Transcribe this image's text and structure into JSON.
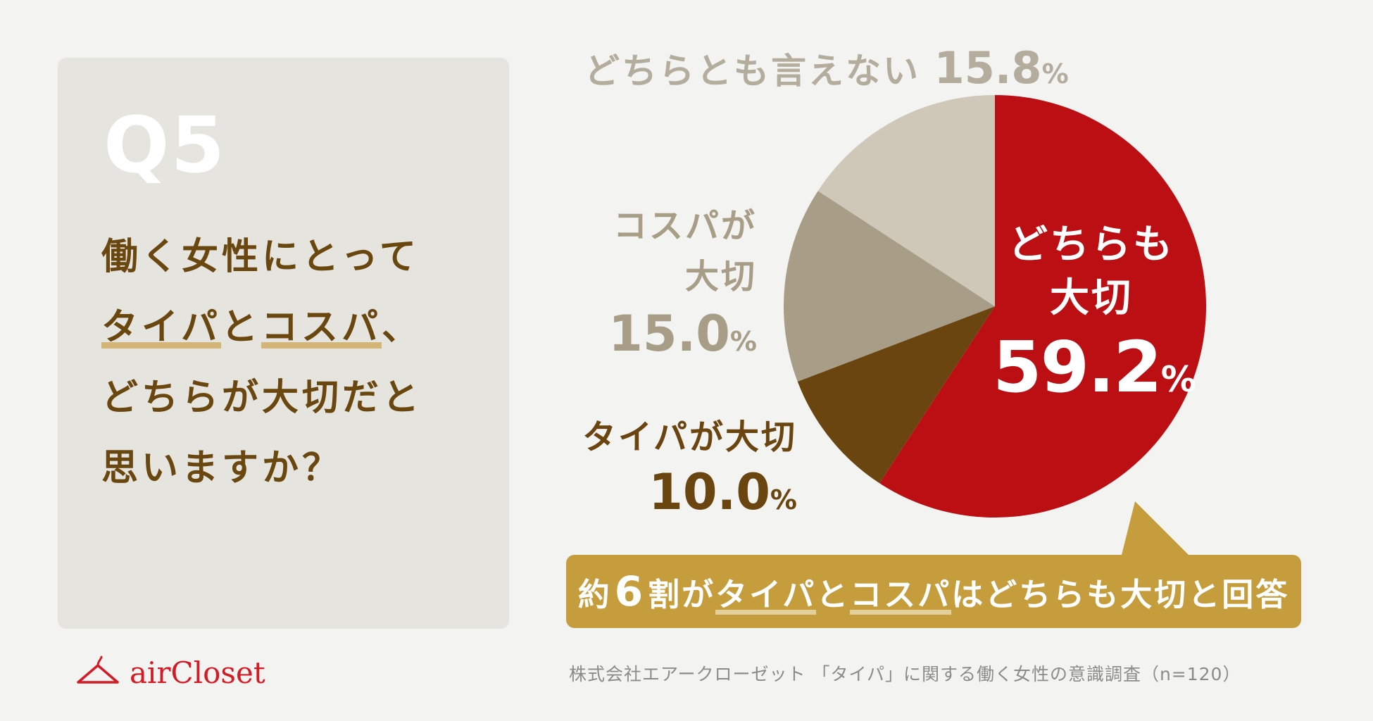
{
  "question": {
    "number": "Q5",
    "line1": "働く女性にとって",
    "line2_part1": "タイパ",
    "line2_part2": "と",
    "line2_part3": "コスパ",
    "line2_part4": "、",
    "line3": "どちらが大切だと",
    "line4": "思いますか？"
  },
  "brand": {
    "logo_text": "airCloset",
    "icon": "hanger-icon",
    "color": "#d41a25"
  },
  "labels": {
    "neither_text": "どちらとも言えない",
    "neither_value": "15.8",
    "cospa_line1": "コスパが",
    "cospa_line2": "大切",
    "cospa_value": "15.0",
    "taipa_text": "タイパが大切",
    "taipa_value": "10.0",
    "both_line1": "どちらも",
    "both_line2": "大切",
    "both_value": "59.2",
    "percent_sign": "%"
  },
  "callout": {
    "part1": "約",
    "part2": "6",
    "part3": "割が",
    "part4": "タイパ",
    "part5": "と",
    "part6": "コスパ",
    "part7": "はどちらも大切と回答"
  },
  "source": "株式会社エアークローゼット 「タイパ」に関する働く女性の意識調査（n=120）",
  "chart_data": {
    "type": "pie",
    "start_angle": "12 o'clock",
    "direction": "clockwise",
    "slices": [
      {
        "label": "どちらも大切",
        "value": 59.2,
        "color": "#bc0f14"
      },
      {
        "label": "タイパが大切",
        "value": 10.0,
        "color": "#6a4510"
      },
      {
        "label": "コスパが大切",
        "value": 15.0,
        "color": "#a89e87"
      },
      {
        "label": "どちらとも言えない",
        "value": 15.8,
        "color": "#cfc8b9"
      }
    ]
  }
}
